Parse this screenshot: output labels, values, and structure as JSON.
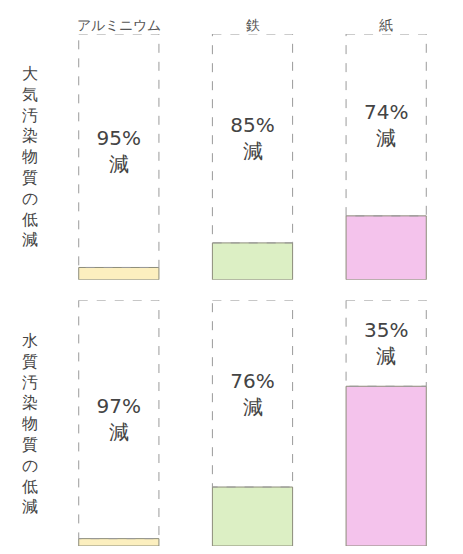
{
  "chart_data": {
    "type": "bar",
    "categories": [
      "アルミニウム",
      "鉄",
      "紙"
    ],
    "colors": [
      "#fcefbf",
      "#dcefc4",
      "#f4c3ec"
    ],
    "series": [
      {
        "name": "大気汚染物質の低減",
        "values": [
          95,
          85,
          74
        ],
        "value_labels": [
          "95%減",
          "85%減",
          "74%減"
        ]
      },
      {
        "name": "水質汚染物質の低減",
        "values": [
          97,
          76,
          35
        ],
        "value_labels": [
          "97%減",
          "76%減",
          "35%減"
        ]
      }
    ],
    "ylim": [
      0,
      100
    ],
    "tick_labels": "x",
    "data_labels": true,
    "grid": false
  }
}
